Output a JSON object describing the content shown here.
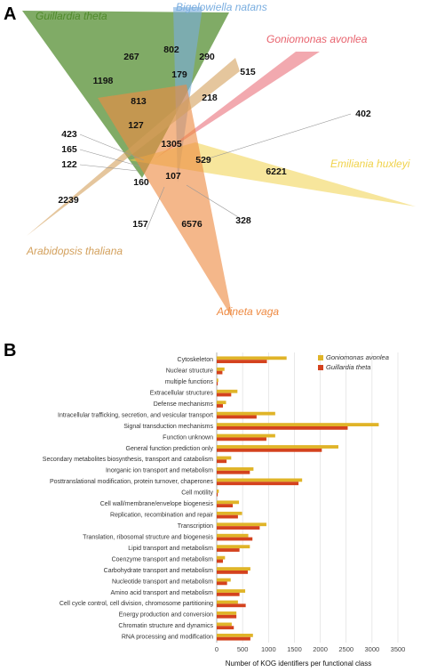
{
  "panel_a": {
    "letter": "A",
    "species": [
      {
        "name": "Guillardia theta",
        "color": "#4f8a2b"
      },
      {
        "name": "Bigelowiella natans",
        "color": "#7aaee0"
      },
      {
        "name": "Goniomonas avonlea",
        "color": "#e8636e"
      },
      {
        "name": "Emiliania huxleyi",
        "color": "#f0d24a"
      },
      {
        "name": "Adineta vaga",
        "color": "#ee8a42"
      },
      {
        "name": "Arabidopsis thaliana",
        "color": "#d3a05c"
      }
    ],
    "counts": [
      "267",
      "802",
      "290",
      "1198",
      "179",
      "515",
      "813",
      "218",
      "402",
      "127",
      "1305",
      "423",
      "165",
      "529",
      "6221",
      "122",
      "107",
      "160",
      "2239",
      "157",
      "328",
      "6576"
    ]
  },
  "panel_b": {
    "letter": "B"
  },
  "chart_data": {
    "type": "bar",
    "orientation": "horizontal",
    "categories": [
      "Cytoskeleton",
      "Nuclear structure",
      "multiple functions",
      "Extracellular structures",
      "Defense mechanisms",
      "Intracellular trafficking, secretion, and vesicular transport",
      "Signal transduction mechanisms",
      "Function unknown",
      "General function prediction only",
      "Secondary metabolites biosynthesis, transport and catabolism",
      "Inorganic ion transport and metabolism",
      "Posttranslational modification, protein turnover, chaperones",
      "Cell motility",
      "Cell wall/membrane/envelope biogenesis",
      "Replication, recombination and repair",
      "Transcription",
      "Translation, ribosomal structure and biogenesis",
      "Lipid transport and metabolism",
      "Coenzyme transport and metabolism",
      "Carbohydrate transport and metabolism",
      "Nucleotide transport and metabolism",
      "Amino acid transport and metabolism",
      "Cell cycle control, cell division, chromosome partitioning",
      "Energy production and conversion",
      "Chromatin structure and dynamics",
      "RNA processing and modification"
    ],
    "series": [
      {
        "name": "Goniomonas avonlea",
        "color": "#e0b428",
        "values": [
          1350,
          150,
          30,
          400,
          180,
          1130,
          3130,
          1130,
          2350,
          280,
          710,
          1650,
          40,
          430,
          490,
          960,
          610,
          640,
          160,
          650,
          270,
          550,
          410,
          380,
          290,
          700
        ]
      },
      {
        "name": "Guillardia theta",
        "color": "#d4421e",
        "values": [
          970,
          110,
          20,
          280,
          120,
          770,
          2530,
          960,
          2030,
          190,
          640,
          1580,
          20,
          310,
          410,
          830,
          690,
          440,
          120,
          600,
          200,
          440,
          560,
          380,
          330,
          650
        ]
      }
    ],
    "xlabel": "Number of KOG identifiers per functional class",
    "xticks": [
      "0",
      "500",
      "1000",
      "1500",
      "2000",
      "2500",
      "3000",
      "3500"
    ],
    "xlim": [
      0,
      3500
    ],
    "grid": true,
    "legend_position": "top-right"
  }
}
